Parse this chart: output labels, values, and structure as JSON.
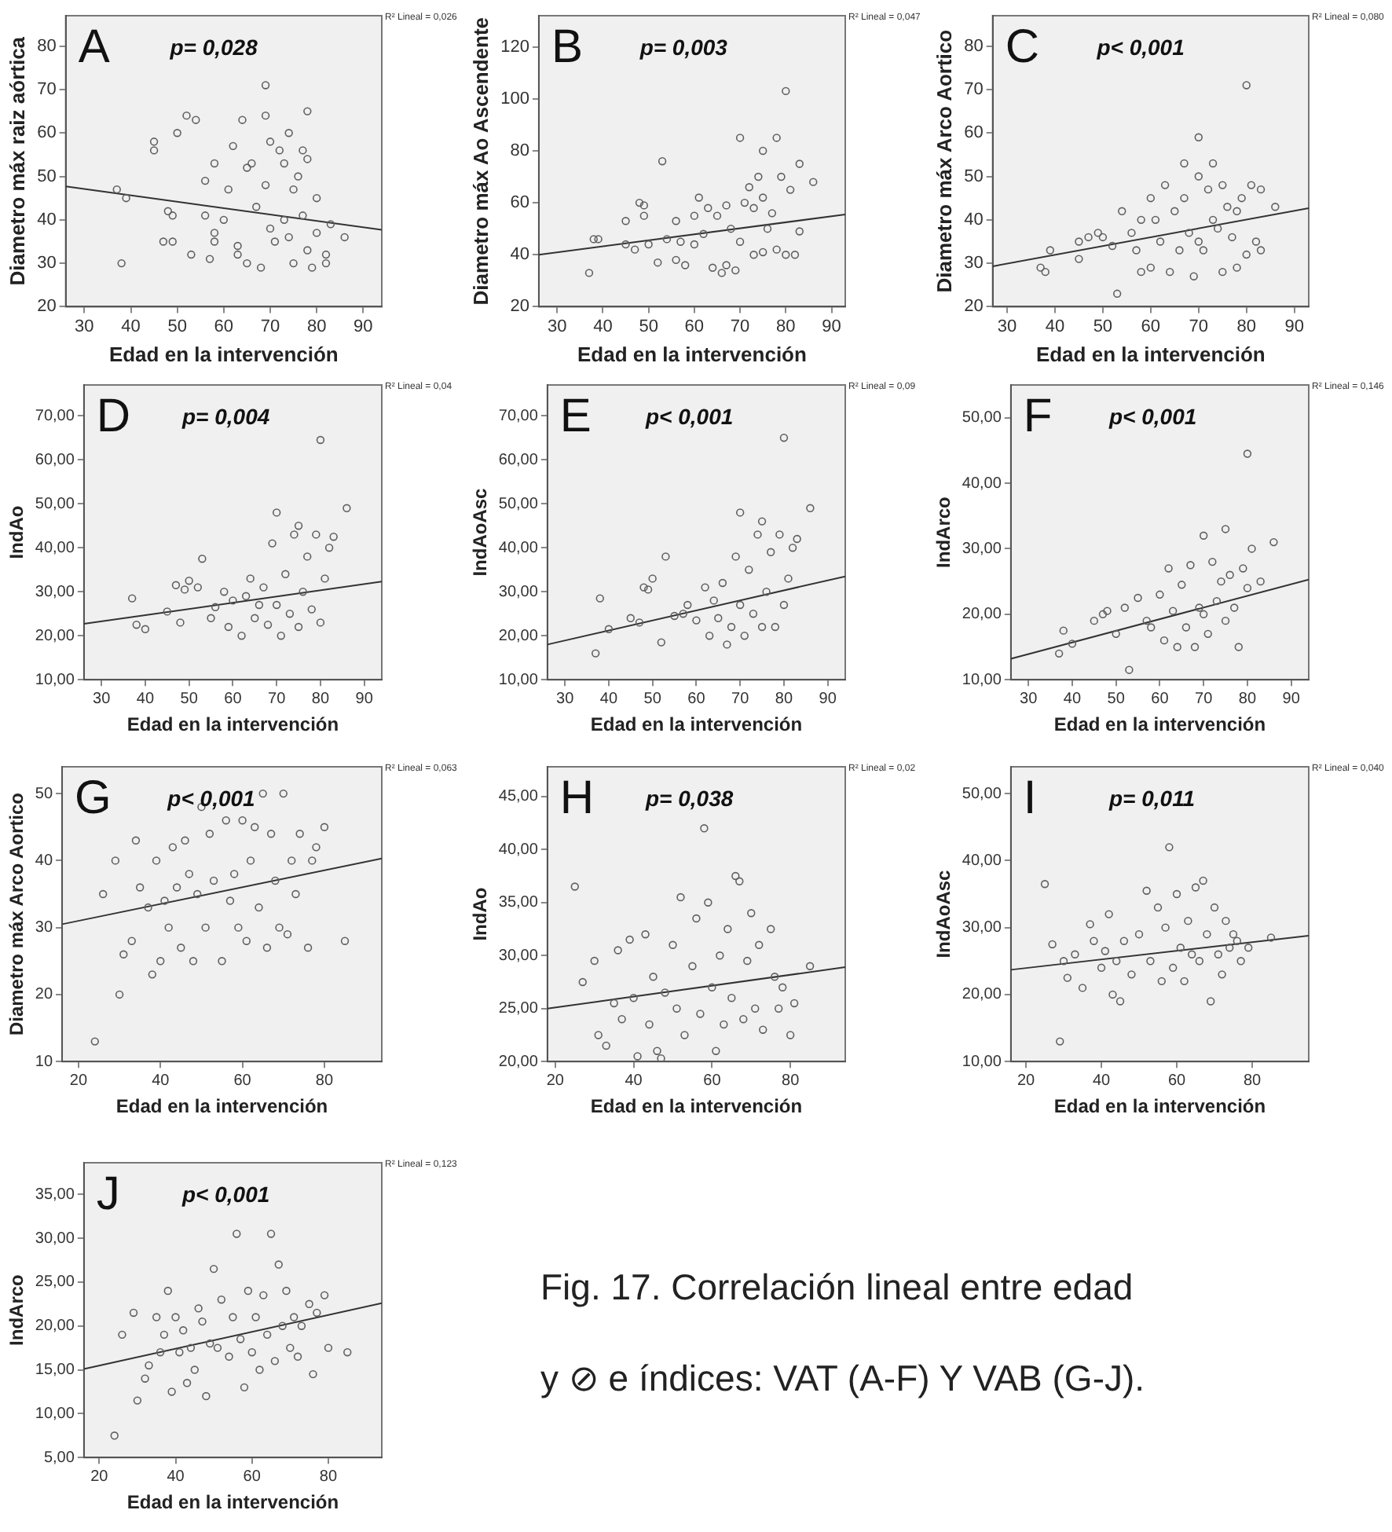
{
  "chart_data": [
    {
      "type": "scatter",
      "title": "A",
      "subtitle": "p= 0,028",
      "xlabel": "Edad en la intervención",
      "ylabel": "Diametro máx raiz aórtica",
      "annotations": [
        "R² Lineal = 0,026"
      ],
      "marker": "circle",
      "xlim": [
        26,
        94
      ],
      "xticks": [
        30,
        40,
        50,
        60,
        70,
        80,
        90
      ],
      "ylim": [
        20,
        87
      ],
      "yticks": [
        20,
        30,
        40,
        50,
        60,
        70,
        80
      ],
      "series": [
        {
          "type": "scatter",
          "color": "#606060",
          "x": [
            37,
            38,
            39,
            45,
            45,
            48,
            49,
            47,
            49,
            50,
            52,
            53,
            54,
            56,
            56,
            57,
            58,
            58,
            58,
            60,
            61,
            62,
            63,
            63,
            64,
            65,
            65,
            66,
            67,
            68,
            69,
            69,
            69,
            70,
            70,
            71,
            72,
            73,
            73,
            74,
            74,
            75,
            75,
            76,
            77,
            77,
            78,
            78,
            78,
            79,
            80,
            80,
            82,
            82,
            83,
            86
          ],
          "values": [
            47,
            30,
            45,
            58,
            56,
            42,
            41,
            35,
            35,
            60,
            64,
            32,
            63,
            49,
            41,
            31,
            53,
            37,
            35,
            40,
            47,
            57,
            34,
            32,
            63,
            52,
            30,
            53,
            43,
            29,
            71,
            64,
            48,
            58,
            38,
            35,
            56,
            53,
            40,
            60,
            36,
            47,
            30,
            50,
            41,
            56,
            65,
            54,
            33,
            29,
            45,
            37,
            32,
            30,
            39,
            36
          ]
        },
        {
          "type": "line",
          "color": "#333333",
          "x": [
            26,
            94
          ],
          "values": [
            47.7,
            37.7
          ],
          "marker": "none"
        }
      ]
    },
    {
      "type": "scatter",
      "title": "B",
      "subtitle": "p= 0,003",
      "xlabel": "Edad en la intervención",
      "ylabel": "Diametro máx Ao Ascendente",
      "annotations": [
        "R² Lineal = 0,047"
      ],
      "marker": "circle",
      "xlim": [
        26,
        93
      ],
      "xticks": [
        30,
        40,
        50,
        60,
        70,
        80,
        90
      ],
      "ylim": [
        20,
        132
      ],
      "yticks": [
        20,
        40,
        60,
        80,
        100,
        120
      ],
      "series": [
        {
          "type": "scatter",
          "color": "#606060",
          "x": [
            37,
            38,
            39,
            45,
            45,
            47,
            48,
            49,
            49,
            50,
            52,
            53,
            54,
            56,
            56,
            57,
            58,
            60,
            60,
            61,
            62,
            63,
            64,
            65,
            66,
            67,
            67,
            68,
            69,
            70,
            70,
            71,
            72,
            73,
            73,
            74,
            75,
            75,
            75,
            76,
            77,
            78,
            78,
            79,
            80,
            80,
            81,
            82,
            83,
            83,
            86
          ],
          "values": [
            33,
            46,
            46,
            53,
            44,
            42,
            60,
            59,
            55,
            44,
            37,
            76,
            46,
            53,
            38,
            45,
            36,
            55,
            44,
            62,
            48,
            58,
            35,
            55,
            33,
            59,
            36,
            50,
            34,
            85,
            45,
            60,
            66,
            58,
            40,
            70,
            80,
            62,
            41,
            50,
            56,
            85,
            42,
            70,
            103,
            40,
            65,
            40,
            75,
            49,
            68
          ]
        },
        {
          "type": "line",
          "color": "#333333",
          "x": [
            26,
            93
          ],
          "values": [
            40,
            55.5
          ],
          "marker": "none"
        }
      ]
    },
    {
      "type": "scatter",
      "title": "C",
      "subtitle": "p< 0,001",
      "xlabel": "Edad en la intervención",
      "ylabel": "Diametro máx Arco Aortico",
      "annotations": [
        "R² Lineal = 0,080"
      ],
      "marker": "circle",
      "xlim": [
        27,
        93
      ],
      "xticks": [
        30,
        40,
        50,
        60,
        70,
        80,
        90
      ],
      "ylim": [
        20,
        87
      ],
      "yticks": [
        20,
        30,
        40,
        50,
        60,
        70,
        80
      ],
      "series": [
        {
          "type": "scatter",
          "color": "#606060",
          "x": [
            37,
            38,
            39,
            45,
            45,
            47,
            49,
            50,
            52,
            53,
            54,
            56,
            57,
            58,
            58,
            60,
            60,
            61,
            62,
            63,
            64,
            65,
            66,
            67,
            67,
            68,
            69,
            70,
            70,
            70,
            71,
            72,
            73,
            73,
            74,
            75,
            75,
            76,
            77,
            78,
            78,
            79,
            80,
            80,
            81,
            82,
            83,
            83,
            86
          ],
          "values": [
            29,
            28,
            33,
            35,
            31,
            36,
            37,
            36,
            34,
            23,
            42,
            37,
            33,
            40,
            28,
            45,
            29,
            40,
            35,
            48,
            28,
            42,
            33,
            53,
            45,
            37,
            27,
            59,
            50,
            35,
            33,
            47,
            53,
            40,
            38,
            48,
            28,
            43,
            36,
            42,
            29,
            45,
            71,
            32,
            48,
            35,
            47,
            33,
            43
          ]
        },
        {
          "type": "line",
          "color": "#333333",
          "x": [
            27,
            93
          ],
          "values": [
            29.3,
            42.7
          ],
          "marker": "none"
        }
      ]
    },
    {
      "type": "scatter",
      "title": "D",
      "subtitle": "p= 0,004",
      "xlabel": "Edad en la intervención",
      "ylabel": "IndAo",
      "annotations": [
        "R² Lineal = 0,04"
      ],
      "marker": "circle",
      "xlim": [
        26,
        94
      ],
      "xticks": [
        30,
        40,
        50,
        60,
        70,
        80,
        90
      ],
      "ylim": [
        10,
        77
      ],
      "yticks": [
        {
          "value": 10,
          "label": "10,00"
        },
        {
          "value": 20,
          "label": "20,00"
        },
        {
          "value": 30,
          "label": "30,00"
        },
        {
          "value": 40,
          "label": "40,00"
        },
        {
          "value": 50,
          "label": "50,00"
        },
        {
          "value": 60,
          "label": "60,00"
        },
        {
          "value": 70,
          "label": "70,00"
        }
      ],
      "series": [
        {
          "type": "scatter",
          "color": "#606060",
          "x": [
            37,
            38,
            40,
            45,
            47,
            48,
            49,
            50,
            52,
            53,
            55,
            56,
            58,
            59,
            60,
            62,
            63,
            64,
            65,
            66,
            67,
            68,
            69,
            70,
            70,
            71,
            72,
            73,
            74,
            75,
            75,
            76,
            77,
            78,
            79,
            80,
            80,
            81,
            82,
            83,
            86
          ],
          "values": [
            28.5,
            22.5,
            21.5,
            25.5,
            31.5,
            23,
            30.5,
            32.5,
            31,
            37.5,
            24,
            26.5,
            30,
            22,
            28,
            20,
            29,
            33,
            24,
            27,
            31,
            22.5,
            41,
            48,
            27,
            20,
            34,
            25,
            43,
            45,
            22,
            30,
            38,
            26,
            43,
            64.5,
            23,
            33,
            40,
            42.5,
            49
          ]
        },
        {
          "type": "line",
          "color": "#333333",
          "x": [
            26,
            94
          ],
          "values": [
            22.7,
            32.3
          ],
          "marker": "none"
        }
      ]
    },
    {
      "type": "scatter",
      "title": "E",
      "subtitle": "p< 0,001",
      "xlabel": "Edad en la intervención",
      "ylabel": "IndAoAsc",
      "annotations": [
        "R² Lineal = 0,09"
      ],
      "marker": "circle",
      "xlim": [
        26,
        94
      ],
      "xticks": [
        30,
        40,
        50,
        60,
        70,
        80,
        90
      ],
      "ylim": [
        10,
        77
      ],
      "yticks": [
        {
          "value": 10,
          "label": "10,00"
        },
        {
          "value": 20,
          "label": "20,00"
        },
        {
          "value": 30,
          "label": "30,00"
        },
        {
          "value": 40,
          "label": "40,00"
        },
        {
          "value": 50,
          "label": "50,00"
        },
        {
          "value": 60,
          "label": "60,00"
        },
        {
          "value": 70,
          "label": "70,00"
        }
      ],
      "series": [
        {
          "type": "scatter",
          "color": "#606060",
          "x": [
            37,
            38,
            40,
            45,
            47,
            48,
            49,
            50,
            52,
            53,
            55,
            57,
            58,
            60,
            62,
            63,
            64,
            65,
            66,
            67,
            68,
            69,
            70,
            70,
            71,
            72,
            73,
            74,
            75,
            75,
            76,
            77,
            78,
            79,
            80,
            80,
            81,
            82,
            83,
            86
          ],
          "values": [
            16,
            28.5,
            21.5,
            24,
            23,
            31,
            30.5,
            33,
            18.5,
            38,
            24.5,
            25,
            27,
            23.5,
            31,
            20,
            28,
            24,
            32,
            18,
            22,
            38,
            48,
            27,
            20,
            35,
            25,
            43,
            46,
            22,
            30,
            39,
            22,
            43,
            65,
            27,
            33,
            40,
            42,
            49
          ]
        },
        {
          "type": "line",
          "color": "#333333",
          "x": [
            26,
            94
          ],
          "values": [
            18,
            33.5
          ],
          "marker": "none"
        }
      ]
    },
    {
      "type": "scatter",
      "title": "F",
      "subtitle": "p< 0,001",
      "xlabel": "Edad en la intervención",
      "ylabel": "IndArco",
      "annotations": [
        "R² Lineal = 0,146"
      ],
      "marker": "circle",
      "xlim": [
        26,
        94
      ],
      "xticks": [
        30,
        40,
        50,
        60,
        70,
        80,
        90
      ],
      "ylim": [
        10,
        55
      ],
      "yticks": [
        {
          "value": 10,
          "label": "10,00"
        },
        {
          "value": 20,
          "label": "20,00"
        },
        {
          "value": 30,
          "label": "30,00"
        },
        {
          "value": 40,
          "label": "40,00"
        },
        {
          "value": 50,
          "label": "50,00"
        }
      ],
      "series": [
        {
          "type": "scatter",
          "color": "#606060",
          "x": [
            37,
            38,
            40,
            45,
            47,
            48,
            50,
            52,
            53,
            55,
            57,
            58,
            60,
            61,
            62,
            63,
            64,
            65,
            66,
            67,
            68,
            69,
            70,
            70,
            71,
            72,
            73,
            74,
            75,
            75,
            76,
            77,
            78,
            79,
            80,
            80,
            81,
            83,
            86
          ],
          "values": [
            14,
            17.5,
            15.5,
            19,
            20,
            20.5,
            17,
            21,
            11.5,
            22.5,
            19,
            18,
            23,
            16,
            27,
            20.5,
            15,
            24.5,
            18,
            27.5,
            15,
            21,
            32,
            20,
            17,
            28,
            22,
            25,
            33,
            19,
            26,
            21,
            15,
            27,
            44.5,
            24,
            30,
            25,
            31
          ]
        },
        {
          "type": "line",
          "color": "#333333",
          "x": [
            26,
            94
          ],
          "values": [
            13.2,
            25.3
          ],
          "marker": "none"
        }
      ]
    },
    {
      "type": "scatter",
      "title": "G",
      "subtitle": "p< 0,001",
      "xlabel": "Edad en la intervención",
      "ylabel": "Diametro máx Arco Aortico",
      "annotations": [
        "R² Lineal = 0,063"
      ],
      "marker": "circle",
      "xlim": [
        16,
        94
      ],
      "xticks": [
        20,
        40,
        60,
        80
      ],
      "ylim": [
        10,
        54
      ],
      "yticks": [
        10,
        20,
        30,
        40,
        50
      ],
      "series": [
        {
          "type": "scatter",
          "color": "#606060",
          "x": [
            24,
            26,
            29,
            30,
            31,
            33,
            34,
            35,
            37,
            38,
            39,
            40,
            41,
            42,
            43,
            44,
            45,
            46,
            47,
            48,
            49,
            50,
            51,
            52,
            53,
            55,
            56,
            57,
            58,
            59,
            60,
            61,
            62,
            63,
            64,
            65,
            66,
            67,
            68,
            69,
            70,
            71,
            72,
            73,
            74,
            76,
            77,
            78,
            80,
            85
          ],
          "values": [
            13,
            35,
            40,
            20,
            26,
            28,
            43,
            36,
            33,
            23,
            40,
            25,
            34,
            30,
            42,
            36,
            27,
            43,
            38,
            25,
            35,
            48,
            30,
            44,
            37,
            25,
            46,
            34,
            38,
            30,
            46,
            28,
            40,
            45,
            33,
            50,
            27,
            44,
            37,
            30,
            50,
            29,
            40,
            35,
            44,
            27,
            40,
            42,
            45,
            28
          ]
        },
        {
          "type": "line",
          "color": "#333333",
          "x": [
            16,
            94
          ],
          "values": [
            30.5,
            40.3
          ],
          "marker": "none"
        }
      ]
    },
    {
      "type": "scatter",
      "title": "H",
      "subtitle": "p= 0,038",
      "xlabel": "Edad en la intervención",
      "ylabel": "IndAo",
      "annotations": [
        "R² Lineal = 0,02"
      ],
      "marker": "circle",
      "xlim": [
        18,
        94
      ],
      "xticks": [
        20,
        40,
        60,
        80
      ],
      "ylim": [
        20,
        47.8
      ],
      "yticks": [
        {
          "value": 20,
          "label": "20,00"
        },
        {
          "value": 25,
          "label": "25,00"
        },
        {
          "value": 30,
          "label": "30,00"
        },
        {
          "value": 35,
          "label": "35,00"
        },
        {
          "value": 40,
          "label": "40,00"
        },
        {
          "value": 45,
          "label": "45,00"
        }
      ],
      "series": [
        {
          "type": "scatter",
          "color": "#606060",
          "x": [
            25,
            27,
            30,
            31,
            33,
            35,
            36,
            37,
            39,
            40,
            41,
            43,
            44,
            45,
            46,
            47,
            48,
            50,
            51,
            52,
            53,
            55,
            56,
            57,
            58,
            59,
            60,
            61,
            62,
            63,
            64,
            65,
            66,
            67,
            68,
            69,
            70,
            71,
            72,
            73,
            75,
            76,
            77,
            78,
            80,
            81,
            85
          ],
          "values": [
            36.5,
            27.5,
            29.5,
            22.5,
            21.5,
            25.5,
            30.5,
            24,
            31.5,
            26,
            20.5,
            32,
            23.5,
            28,
            21,
            20.3,
            26.5,
            31,
            25,
            35.5,
            22.5,
            29,
            33.5,
            24.5,
            42,
            35,
            27,
            21,
            30,
            23.5,
            32.5,
            26,
            37.5,
            37,
            24,
            29.5,
            34,
            25,
            31,
            23,
            32.5,
            28,
            25,
            27,
            22.5,
            25.5,
            29
          ]
        },
        {
          "type": "line",
          "color": "#333333",
          "x": [
            18,
            94
          ],
          "values": [
            25,
            28.9
          ],
          "marker": "none"
        }
      ]
    },
    {
      "type": "scatter",
      "title": "I",
      "subtitle": "p= 0,011",
      "xlabel": "Edad en la intervención",
      "ylabel": "IndAoAsc",
      "annotations": [
        "R² Lineal = 0,040"
      ],
      "marker": "circle",
      "xlim": [
        16,
        95
      ],
      "xticks": [
        20,
        40,
        60,
        80
      ],
      "ylim": [
        10,
        54
      ],
      "yticks": [
        {
          "value": 10,
          "label": "10,00"
        },
        {
          "value": 20,
          "label": "20,00"
        },
        {
          "value": 30,
          "label": "30,00"
        },
        {
          "value": 40,
          "label": "40,00"
        },
        {
          "value": 50,
          "label": "50,00"
        }
      ],
      "series": [
        {
          "type": "scatter",
          "color": "#606060",
          "x": [
            25,
            27,
            29,
            30,
            31,
            33,
            35,
            37,
            38,
            40,
            41,
            42,
            43,
            44,
            45,
            46,
            48,
            50,
            52,
            53,
            55,
            56,
            57,
            58,
            59,
            60,
            61,
            62,
            63,
            64,
            65,
            66,
            67,
            68,
            69,
            70,
            71,
            72,
            73,
            74,
            75,
            76,
            77,
            79,
            85
          ],
          "values": [
            36.5,
            27.5,
            13,
            25,
            22.5,
            26,
            21,
            30.5,
            28,
            24,
            26.5,
            32,
            20,
            25,
            19,
            28,
            23,
            29,
            35.5,
            25,
            33,
            22,
            30,
            42,
            24,
            35,
            27,
            22,
            31,
            26,
            36,
            25,
            37,
            29,
            19,
            33,
            26,
            23,
            31,
            27,
            29,
            28,
            25,
            27,
            28.5
          ]
        },
        {
          "type": "line",
          "color": "#333333",
          "x": [
            16,
            95
          ],
          "values": [
            23.7,
            28.8
          ],
          "marker": "none"
        }
      ]
    },
    {
      "type": "scatter",
      "title": "J",
      "subtitle": "p< 0,001",
      "xlabel": "Edad en la intervención",
      "ylabel": "IndArco",
      "annotations": [
        "R² Lineal = 0,123"
      ],
      "marker": "circle",
      "xlim": [
        16,
        94
      ],
      "xticks": [
        20,
        40,
        60,
        80
      ],
      "ylim": [
        5,
        38.6
      ],
      "yticks": [
        {
          "value": 5,
          "label": "5,00"
        },
        {
          "value": 10,
          "label": "10,00"
        },
        {
          "value": 15,
          "label": "15,00"
        },
        {
          "value": 20,
          "label": "20,00"
        },
        {
          "value": 25,
          "label": "25,00"
        },
        {
          "value": 30,
          "label": "30,00"
        },
        {
          "value": 35,
          "label": "35,00"
        }
      ],
      "series": [
        {
          "type": "scatter",
          "color": "#606060",
          "x": [
            24,
            26,
            29,
            30,
            32,
            33,
            35,
            36,
            37,
            38,
            39,
            40,
            41,
            42,
            43,
            44,
            45,
            46,
            47,
            48,
            49,
            50,
            51,
            52,
            54,
            55,
            56,
            57,
            58,
            59,
            60,
            61,
            62,
            63,
            64,
            65,
            66,
            67,
            68,
            69,
            70,
            71,
            72,
            73,
            75,
            76,
            77,
            79,
            80,
            85
          ],
          "values": [
            7.5,
            19,
            21.5,
            11.5,
            14,
            15.5,
            21,
            17,
            19,
            24,
            12.5,
            21,
            17,
            19.5,
            13.5,
            17.5,
            15,
            22,
            20.5,
            12,
            18,
            26.5,
            17.5,
            23,
            16.5,
            21,
            30.5,
            18.5,
            13,
            24,
            17,
            21,
            15,
            23.5,
            19,
            30.5,
            16,
            27,
            20,
            24,
            17.5,
            21,
            16.5,
            20,
            22.5,
            14.5,
            21.5,
            23.5,
            17.5,
            17
          ]
        },
        {
          "type": "line",
          "color": "#333333",
          "x": [
            16,
            94
          ],
          "values": [
            15.1,
            22.6
          ],
          "marker": "none"
        }
      ]
    },
    {
      "type": "other",
      "annotations": [
        "Fig. 17. Correlación lineal entre edad",
        "y ⊘ e índices: VAT (A-F) Y VAB (G-J)."
      ]
    }
  ]
}
